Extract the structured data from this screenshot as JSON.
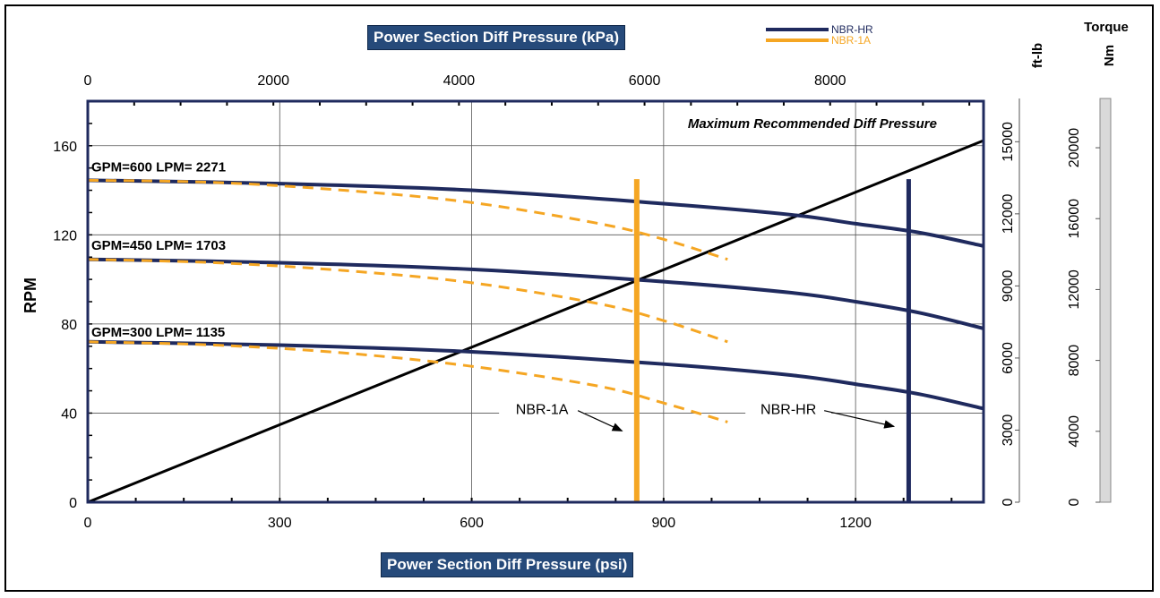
{
  "chart_data": {
    "type": "line",
    "title": "",
    "x_top_title": "Power Section Diff Pressure (kPa)",
    "x_bottom_title": "Power Section Diff Pressure (psi)",
    "y_left_title": "RPM",
    "y_right_title": "Torque",
    "torque_units": [
      "ft-lb",
      "Nm"
    ],
    "annotation": "Maximum Recommended Diff Pressure",
    "x_psi_ticks": [
      "0",
      "300",
      "600",
      "900",
      "1200"
    ],
    "x_kpa_ticks": [
      "0",
      "2000",
      "4000",
      "6000",
      "8000"
    ],
    "y_rpm_ticks": [
      "0",
      "40",
      "80",
      "120",
      "160"
    ],
    "torque_ftlb_ticks": [
      "0",
      "3000",
      "6000",
      "9000",
      "12000",
      "15000"
    ],
    "torque_nm_ticks": [
      "0",
      "4000",
      "8000",
      "12000",
      "16000",
      "20000"
    ],
    "xlim_psi": [
      0,
      1400
    ],
    "xlim_kpa": [
      0,
      9653
    ],
    "ylim_rpm": [
      0,
      180
    ],
    "ylim_ftlb": [
      0,
      16800
    ],
    "ylim_nm": [
      0,
      22780
    ],
    "grid": true,
    "legend_position": "top-center",
    "legend": [
      {
        "name": "NBR-HR",
        "color": "#1f2a5e"
      },
      {
        "name": "NBR-1A",
        "color": "#f5a623"
      }
    ],
    "flow_labels": [
      "GPM=600 LPM= 2271",
      "GPM=450 LPM= 1703",
      "GPM=300 LPM= 1135"
    ],
    "series": [
      {
        "name": "NBR-HR",
        "color": "#1f2a5e",
        "dashed": false,
        "x": [
          0,
          300,
          600,
          900,
          1100,
          1200,
          1300,
          1400
        ],
        "y": [
          144.5,
          143,
          140,
          134,
          129,
          125,
          121,
          115
        ]
      },
      {
        "name": "NBR-HR",
        "color": "#1f2a5e",
        "dashed": false,
        "x": [
          0,
          300,
          600,
          900,
          1100,
          1200,
          1300,
          1400
        ],
        "y": [
          109,
          107.5,
          104.5,
          99,
          94,
          90,
          85,
          78
        ]
      },
      {
        "name": "NBR-HR",
        "color": "#1f2a5e",
        "dashed": false,
        "x": [
          0,
          300,
          600,
          900,
          1100,
          1200,
          1300,
          1400
        ],
        "y": [
          72,
          70.5,
          67.5,
          62,
          57,
          53,
          48.5,
          42
        ]
      },
      {
        "name": "NBR-1A",
        "color": "#f5a623",
        "dashed": true,
        "x": [
          0,
          200,
          400,
          600,
          800,
          900,
          1000
        ],
        "y": [
          144.5,
          143.5,
          140,
          134.5,
          125,
          118,
          109
        ]
      },
      {
        "name": "NBR-1A",
        "color": "#f5a623",
        "dashed": true,
        "x": [
          0,
          200,
          400,
          600,
          800,
          900,
          1000
        ],
        "y": [
          109,
          107.5,
          104,
          98.5,
          89,
          81.5,
          72
        ]
      },
      {
        "name": "NBR-1A",
        "color": "#f5a623",
        "dashed": true,
        "x": [
          0,
          200,
          400,
          600,
          800,
          900,
          1000
        ],
        "y": [
          72,
          70.5,
          67,
          61,
          52,
          44.5,
          36
        ]
      }
    ],
    "torque_line": {
      "x": [
        0,
        1400
      ],
      "y_ftlb": [
        0,
        15150
      ]
    },
    "limit_lines": [
      {
        "name": "NBR-1A",
        "label": "NBR-1A",
        "x_psi": 858,
        "y_top": 145,
        "color": "#f5a623",
        "label_x_psi": 710,
        "label_y": 39.5,
        "arrow_to": [
          835,
          32
        ]
      },
      {
        "name": "NBR-HR",
        "label": "NBR-HR",
        "x_psi": 1283,
        "y_top": 145,
        "color": "#1f2a5e",
        "label_x_psi": 1095,
        "label_y": 39.5,
        "arrow_to": [
          1260,
          34
        ]
      }
    ]
  }
}
